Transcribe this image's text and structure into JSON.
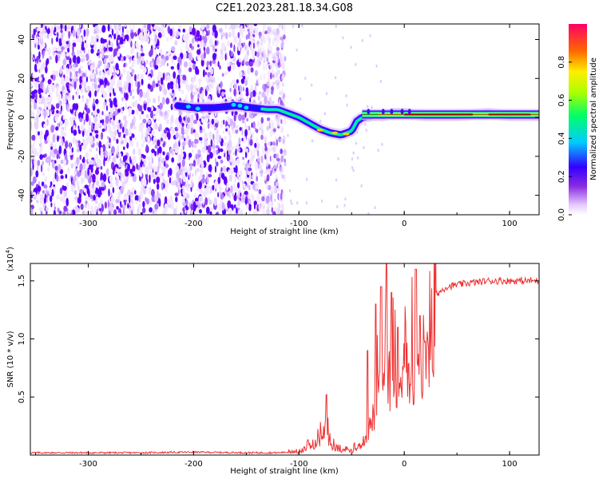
{
  "title": "C2E1.2023.281.18.34.G08",
  "chart_data": [
    {
      "type": "heatmap",
      "title": "",
      "xlabel": "Height of straight line (km)",
      "ylabel": "Frequency (Hz)",
      "xlim": [
        -355,
        128
      ],
      "ylim": [
        -50,
        48
      ],
      "xticks": [
        "-300",
        "-200",
        "-100",
        "0",
        "100"
      ],
      "yticks": [
        "-40",
        "-20",
        "0",
        "20",
        "40"
      ],
      "ridge": {
        "x": [
          -215,
          -200,
          -180,
          -160,
          -145,
          -130,
          -120,
          -110,
          -100,
          -90,
          -80,
          -70,
          -60,
          -50,
          -45,
          -40,
          -30,
          -20,
          -10,
          0,
          20,
          50,
          80,
          100,
          128
        ],
        "y": [
          6,
          5,
          5,
          6,
          5,
          4,
          4,
          2,
          0,
          -3,
          -6,
          -8,
          -9,
          -7,
          -2,
          0,
          1,
          1,
          2,
          2,
          1,
          1,
          2,
          1,
          1
        ]
      },
      "noise_region_x": [
        -355,
        -125
      ],
      "colorbar": {
        "label": "Normalized spectral amplitude",
        "range": [
          0,
          1
        ],
        "ticks": [
          "0.0",
          "0.2",
          "0.4",
          "0.6",
          "0.8"
        ]
      }
    },
    {
      "type": "line",
      "title": "",
      "xlabel": "Height of straight line (km)",
      "ylabel": "SNR (10 * v/v)",
      "multiplier": "(x10",
      "multiplier_exp": "4",
      "multiplier_close": ")",
      "xlim": [
        -355,
        128
      ],
      "ylim": [
        0,
        1.65
      ],
      "xticks": [
        "-300",
        "-200",
        "-100",
        "0",
        "100"
      ],
      "yticks": [
        "0.5",
        "1.0",
        "1.5"
      ],
      "color": "#ee3333",
      "profile": {
        "x": [
          -355,
          -300,
          -250,
          -200,
          -150,
          -120,
          -100,
          -90,
          -80,
          -75,
          -70,
          -60,
          -50,
          -45,
          -40,
          -35,
          -30,
          -25,
          -20,
          -15,
          -10,
          -5,
          0,
          5,
          10,
          15,
          20,
          25,
          30,
          40,
          60,
          80,
          100,
          128
        ],
        "y": [
          0.02,
          0.02,
          0.02,
          0.025,
          0.02,
          0.02,
          0.03,
          0.1,
          0.2,
          0.35,
          0.12,
          0.06,
          0.05,
          0.1,
          0.15,
          0.3,
          0.5,
          0.75,
          0.95,
          1.05,
          1.1,
          1.15,
          1.2,
          1.05,
          1.05,
          1.15,
          1.25,
          1.3,
          1.38,
          1.45,
          1.48,
          1.5,
          1.5,
          1.5
        ]
      },
      "spikes": [
        {
          "x": -74,
          "y": 0.52
        },
        {
          "x": -35,
          "y": 0.9
        },
        {
          "x": -27,
          "y": 1.3
        },
        {
          "x": -22,
          "y": 1.45
        },
        {
          "x": -17,
          "y": 1.65
        },
        {
          "x": -12,
          "y": 1.4
        },
        {
          "x": -6,
          "y": 1.1
        },
        {
          "x": 11,
          "y": 1.6
        },
        {
          "x": 15,
          "y": 1.2
        }
      ]
    }
  ]
}
